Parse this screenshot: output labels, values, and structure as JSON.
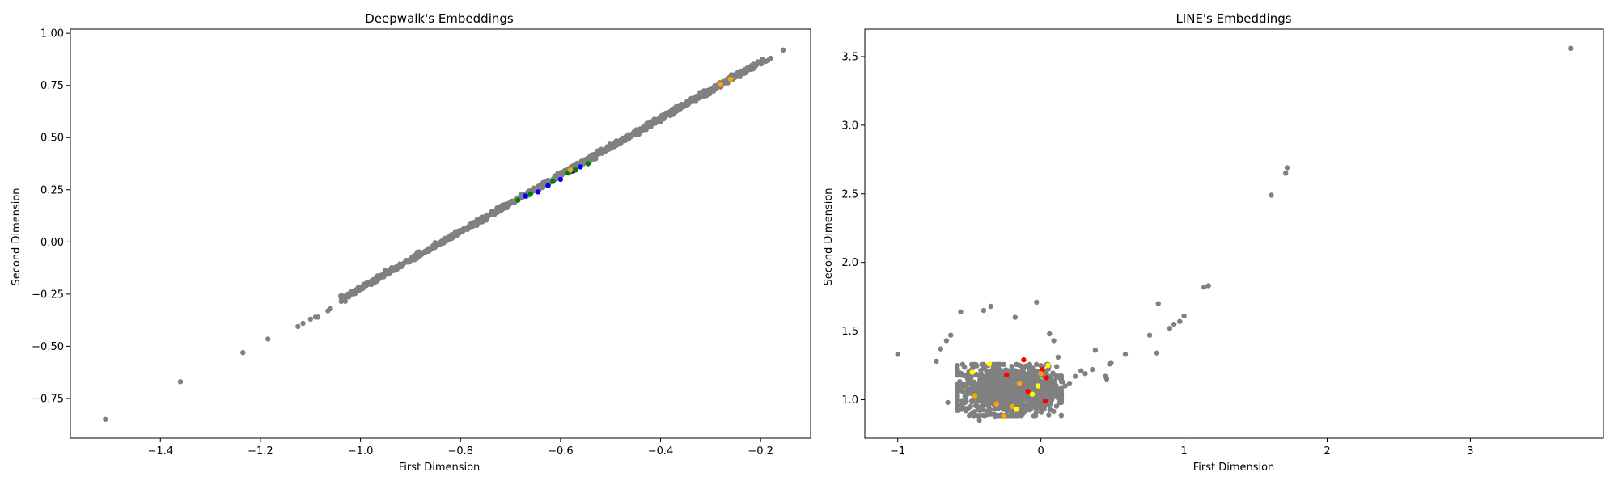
{
  "chart_data": [
    {
      "type": "scatter",
      "title": "Deepwalk's Embeddings",
      "xlabel": "First Dimension",
      "ylabel": "Second Dimension",
      "xlim": [
        -1.58,
        -0.1
      ],
      "ylim": [
        -0.94,
        1.02
      ],
      "xticks": [
        -1.4,
        -1.2,
        -1.0,
        -0.8,
        -0.6,
        -0.4,
        -0.2
      ],
      "xtick_labels": [
        "−1.4",
        "−1.2",
        "−1.0",
        "−0.8",
        "−0.6",
        "−0.4",
        "−0.2"
      ],
      "yticks": [
        -0.75,
        -0.5,
        -0.25,
        0.0,
        0.25,
        0.5,
        0.75,
        1.0
      ],
      "ytick_labels": [
        "−0.75",
        "−0.50",
        "−0.25",
        "0.00",
        "0.25",
        "0.50",
        "0.75",
        "1.00"
      ],
      "grid": false,
      "legend": "none",
      "series": [
        {
          "color": "#808080",
          "points": [
            [
              -1.51,
              -0.85
            ],
            [
              -1.36,
              -0.67
            ],
            [
              -1.235,
              -0.53
            ],
            [
              -1.185,
              -0.465
            ],
            [
              -1.125,
              -0.405
            ],
            [
              -1.115,
              -0.39
            ],
            [
              -1.1,
              -0.37
            ],
            [
              -1.09,
              -0.36
            ],
            [
              -1.085,
              -0.36
            ],
            [
              -1.065,
              -0.33
            ],
            [
              -1.06,
              -0.32
            ],
            [
              -0.155,
              0.92
            ],
            [
              -0.18,
              0.88
            ],
            [
              -0.185,
              0.87
            ],
            [
              -0.19,
              0.865
            ]
          ],
          "dense_band": {
            "x_from": -1.04,
            "x_to": -0.195,
            "slope": 1.357,
            "intercept": 1.135
          }
        },
        {
          "color": "#0000ff",
          "points": [
            [
              -0.67,
              0.22
            ],
            [
              -0.645,
              0.24
            ],
            [
              -0.625,
              0.27
            ],
            [
              -0.6,
              0.3
            ],
            [
              -0.575,
              0.34
            ],
            [
              -0.56,
              0.36
            ]
          ]
        },
        {
          "color": "#008000",
          "points": [
            [
              -0.685,
              0.2
            ],
            [
              -0.66,
              0.23
            ],
            [
              -0.615,
              0.29
            ],
            [
              -0.585,
              0.33
            ],
            [
              -0.57,
              0.345
            ],
            [
              -0.545,
              0.375
            ]
          ]
        },
        {
          "color": "#ffa500",
          "points": [
            [
              -0.58,
              0.345
            ],
            [
              -0.28,
              0.755
            ],
            [
              -0.26,
              0.78
            ]
          ]
        }
      ]
    },
    {
      "type": "scatter",
      "title": "LINE's Embeddings",
      "xlabel": "First Dimension",
      "ylabel": "Second Dimension",
      "xlim": [
        -1.23,
        3.93
      ],
      "ylim": [
        0.72,
        3.7
      ],
      "xticks": [
        -1,
        0,
        1,
        2,
        3
      ],
      "xtick_labels": [
        "−1",
        "0",
        "1",
        "2",
        "3"
      ],
      "yticks": [
        1.0,
        1.5,
        2.0,
        2.5,
        3.0,
        3.5
      ],
      "ytick_labels": [
        "1.0",
        "1.5",
        "2.0",
        "2.5",
        "3.0",
        "3.5"
      ],
      "grid": false,
      "legend": "none",
      "series": [
        {
          "color": "#808080",
          "points": [
            [
              3.7,
              3.56
            ],
            [
              1.72,
              2.69
            ],
            [
              1.71,
              2.65
            ],
            [
              1.61,
              2.49
            ],
            [
              1.17,
              1.83
            ],
            [
              1.14,
              1.82
            ],
            [
              0.97,
              1.57
            ],
            [
              1.0,
              1.61
            ],
            [
              0.93,
              1.55
            ],
            [
              0.9,
              1.52
            ],
            [
              0.82,
              1.7
            ],
            [
              0.81,
              1.34
            ],
            [
              0.76,
              1.47
            ],
            [
              0.59,
              1.33
            ],
            [
              0.49,
              1.27
            ],
            [
              0.48,
              1.26
            ],
            [
              0.46,
              1.15
            ],
            [
              0.45,
              1.17
            ],
            [
              0.38,
              1.36
            ],
            [
              0.36,
              1.22
            ],
            [
              0.31,
              1.19
            ],
            [
              0.28,
              1.21
            ],
            [
              0.24,
              1.17
            ],
            [
              0.2,
              1.12
            ],
            [
              0.17,
              1.1
            ],
            [
              0.15,
              1.13
            ],
            [
              0.12,
              1.31
            ],
            [
              0.09,
              1.43
            ],
            [
              0.06,
              1.48
            ],
            [
              -0.03,
              1.71
            ],
            [
              -0.18,
              1.6
            ],
            [
              -0.35,
              1.68
            ],
            [
              -0.4,
              1.65
            ],
            [
              -0.56,
              1.64
            ],
            [
              -0.63,
              1.47
            ],
            [
              -0.66,
              1.43
            ],
            [
              -0.7,
              1.37
            ],
            [
              -0.73,
              1.28
            ],
            [
              -1.0,
              1.33
            ],
            [
              -0.32,
              0.88
            ],
            [
              -0.43,
              0.85
            ],
            [
              -0.65,
              0.98
            ]
          ],
          "dense_cluster": {
            "cx": -0.22,
            "cy": 1.07,
            "rx": 0.33,
            "ry": 0.17,
            "count": 1400
          }
        },
        {
          "color": "#ff0000",
          "points": [
            [
              -0.12,
              1.29
            ],
            [
              0.04,
              1.16
            ],
            [
              0.03,
              0.99
            ],
            [
              -0.09,
              1.06
            ],
            [
              0.01,
              1.22
            ],
            [
              -0.24,
              1.18
            ]
          ]
        },
        {
          "color": "#ffff00",
          "points": [
            [
              -0.48,
              1.2
            ],
            [
              -0.02,
              1.1
            ],
            [
              -0.06,
              1.04
            ],
            [
              -0.36,
              1.26
            ],
            [
              -0.17,
              0.93
            ],
            [
              0.05,
              1.25
            ]
          ]
        },
        {
          "color": "#ffa500",
          "points": [
            [
              -0.26,
              0.88
            ],
            [
              -0.2,
              0.95
            ],
            [
              -0.46,
              1.03
            ],
            [
              0.0,
              1.19
            ],
            [
              -0.15,
              1.12
            ],
            [
              -0.31,
              0.97
            ]
          ]
        }
      ]
    }
  ]
}
